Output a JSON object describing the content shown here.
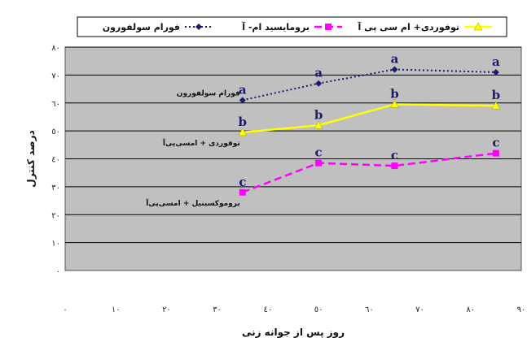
{
  "chart_data": {
    "type": "line",
    "xlabel": "روز پس از جوانه زنی",
    "ylabel": "درصد کنترل",
    "xlim": [
      0,
      90
    ],
    "ylim": [
      0,
      80
    ],
    "x_ticks": [
      0,
      10,
      20,
      30,
      40,
      50,
      60,
      70,
      80,
      90
    ],
    "x_tick_labels": [
      "٠",
      "١٠",
      "٢٠",
      "٣٠",
      "٤٠",
      "٥٠",
      "٦٠",
      "٧٠",
      "٨٠",
      "٩٠"
    ],
    "y_ticks": [
      0,
      10,
      20,
      30,
      40,
      50,
      60,
      70,
      80
    ],
    "y_tick_labels": [
      "٠",
      "١٠",
      "٢٠",
      "٣٠",
      "٤٠",
      "٥٠",
      "٦٠",
      "٧٠",
      "٨٠"
    ],
    "grid": "horizontal",
    "plot_background": "#c0c0c0",
    "legend_position": "top",
    "series": [
      {
        "name": "فورام سولفورون",
        "label": "فورام سولفورون",
        "color": "#1c1c6c",
        "dash": "dotted",
        "marker": "diamond",
        "x": [
          35,
          50,
          65,
          85
        ],
        "values": [
          61,
          67,
          72,
          71
        ],
        "letters": [
          "a",
          "a",
          "a",
          "a"
        ]
      },
      {
        "name": "برومايسيد ام- آ",
        "label": "بروموکسینیل + امسی‌پی‌آ",
        "color": "#ff00ff",
        "dash": "dashed",
        "marker": "square",
        "x": [
          35,
          50,
          65,
          85
        ],
        "values": [
          28,
          38.5,
          37.5,
          42
        ],
        "letters": [
          "c",
          "c",
          "c",
          "c"
        ]
      },
      {
        "name": "توفوردی+ ام سی پی آ",
        "label": "توفوردی + امسی‌پی‌آ",
        "color": "#ffff00",
        "dash": "solid",
        "marker": "triangle",
        "x": [
          35,
          50,
          65,
          85
        ],
        "values": [
          49.5,
          52,
          59.5,
          59
        ],
        "letters": [
          "b",
          "b",
          "b",
          "b"
        ]
      }
    ]
  }
}
